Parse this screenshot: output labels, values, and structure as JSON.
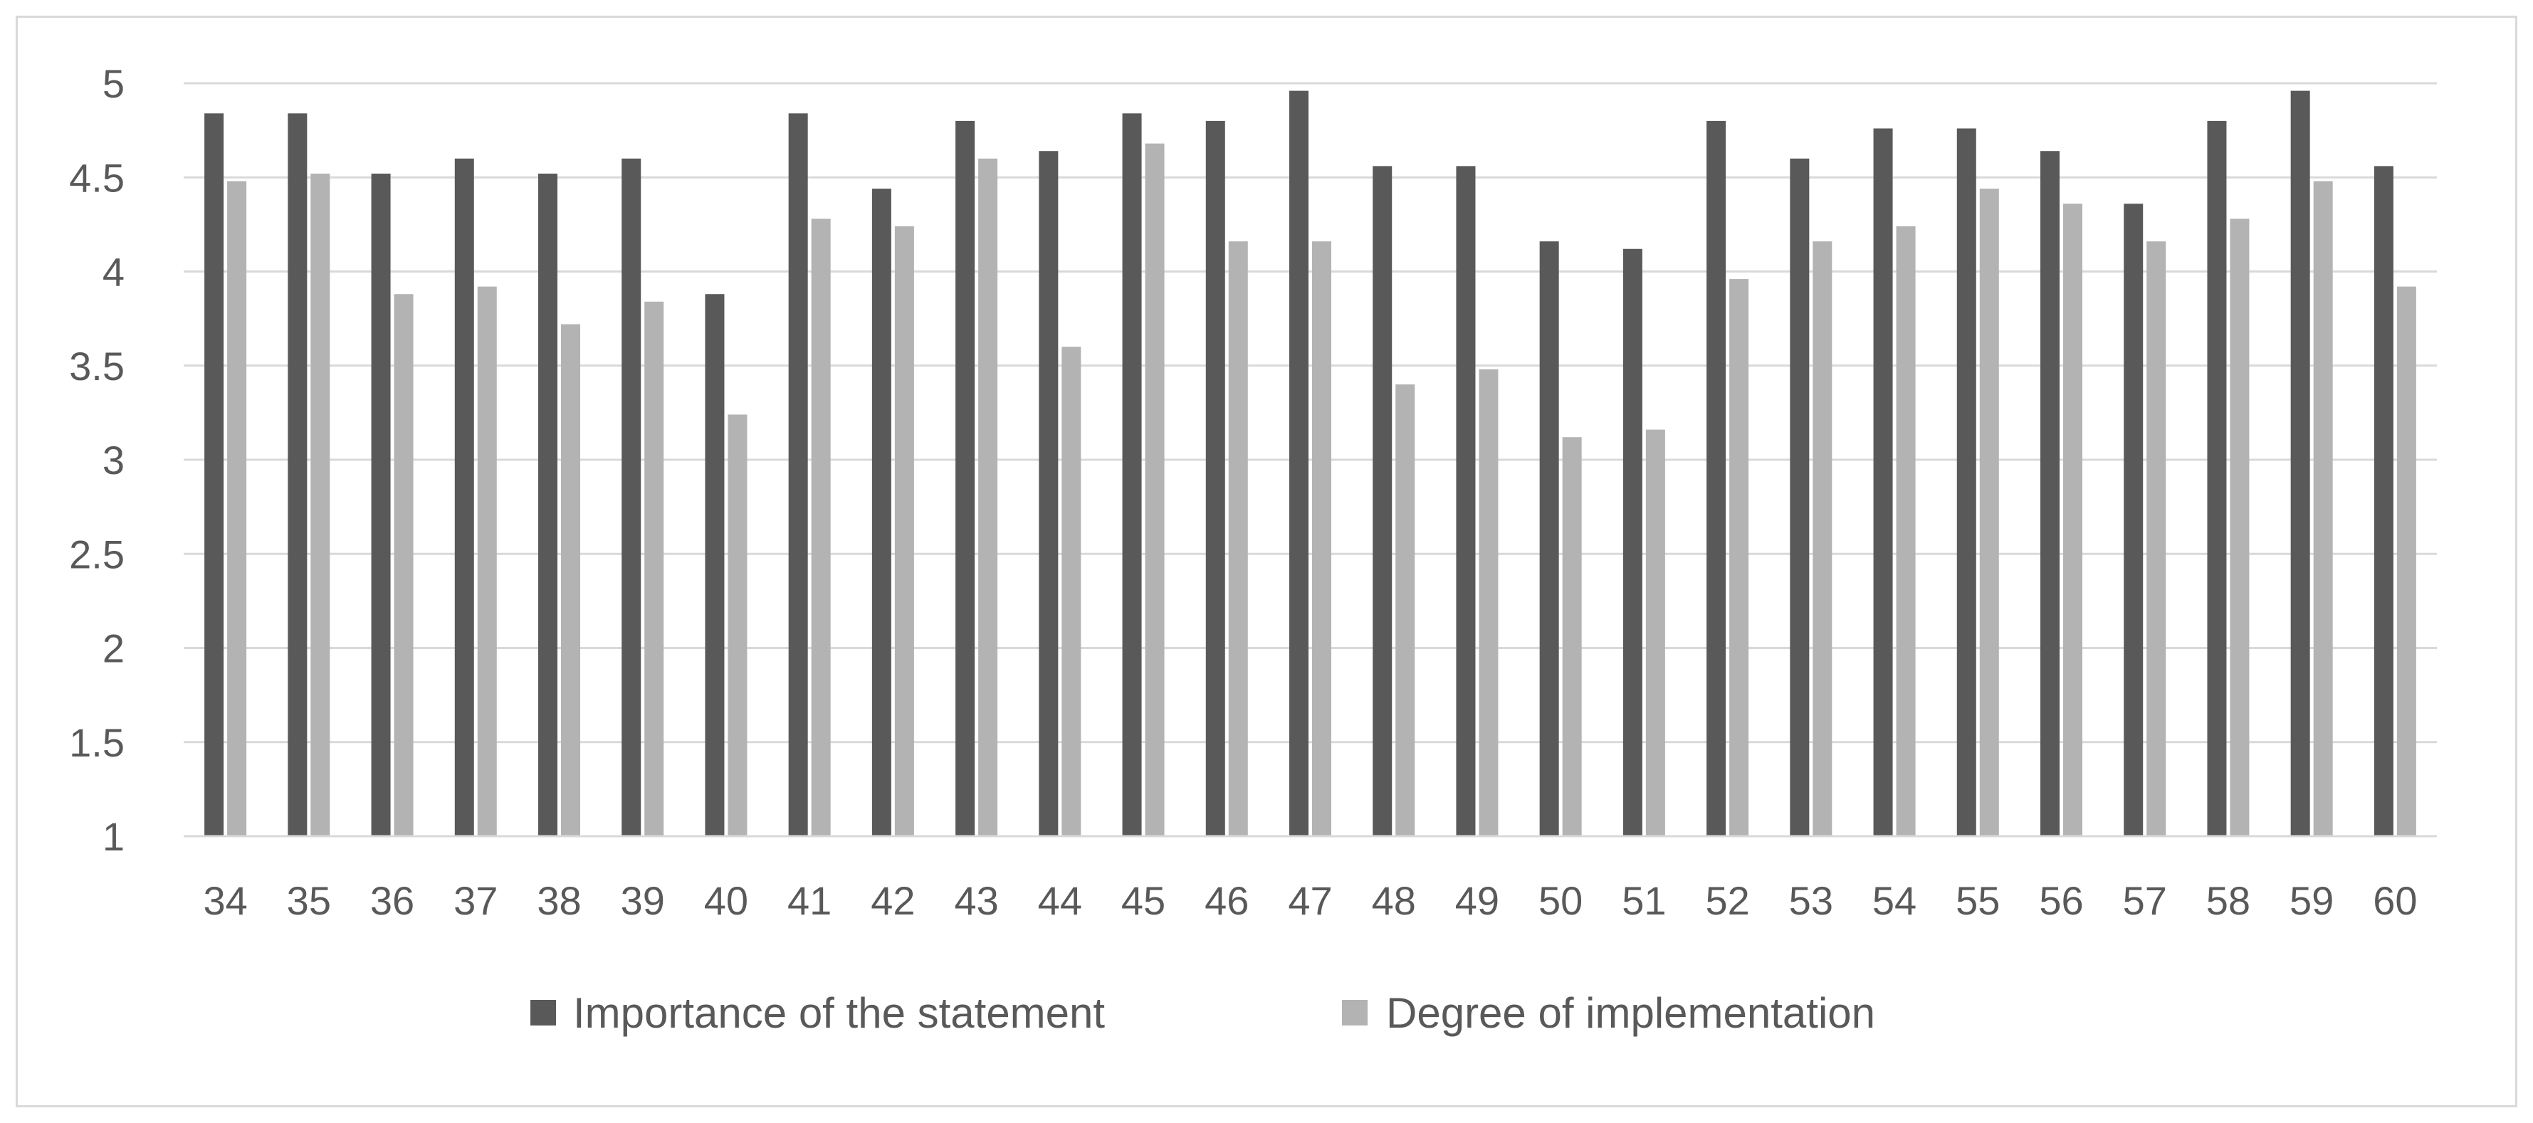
{
  "chart_data": {
    "type": "bar",
    "title": "",
    "xlabel": "",
    "ylabel": "",
    "categories": [
      "34",
      "35",
      "36",
      "37",
      "38",
      "39",
      "40",
      "41",
      "42",
      "43",
      "44",
      "45",
      "46",
      "47",
      "48",
      "49",
      "50",
      "51",
      "52",
      "53",
      "54",
      "55",
      "56",
      "57",
      "58",
      "59",
      "60"
    ],
    "series": [
      {
        "name": "Importance of the statement",
        "color": "#595959",
        "values": [
          4.84,
          4.84,
          4.52,
          4.6,
          4.52,
          4.6,
          3.88,
          4.84,
          4.44,
          4.8,
          4.64,
          4.84,
          4.8,
          4.96,
          4.56,
          4.56,
          4.16,
          4.12,
          4.8,
          4.6,
          4.76,
          4.76,
          4.64,
          4.36,
          4.8,
          4.96,
          4.56
        ]
      },
      {
        "name": "Degree of implementation",
        "color": "#b3b3b3",
        "values": [
          4.48,
          4.52,
          3.88,
          3.92,
          3.72,
          3.84,
          3.24,
          4.28,
          4.24,
          4.6,
          3.6,
          4.68,
          4.16,
          4.16,
          3.4,
          3.48,
          3.12,
          3.16,
          3.96,
          4.16,
          4.24,
          4.44,
          4.36,
          4.16,
          4.28,
          4.48,
          3.92
        ]
      }
    ],
    "ylim": [
      1,
      5
    ],
    "yticks": [
      "1",
      "1.5",
      "2",
      "2.5",
      "3",
      "3.5",
      "4",
      "4.5",
      "5"
    ],
    "grid": true,
    "legend_position": "bottom"
  }
}
